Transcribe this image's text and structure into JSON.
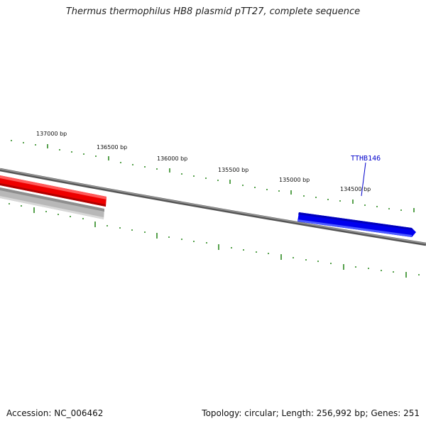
{
  "title": "Thermus thermophilus HB8 plasmid pTT27, complete sequence",
  "accession_text": "Accession: NC_006462",
  "summary_text": "Topology: circular; Length: 256,992 bp; Genes: 251",
  "tick_labels": [
    "137000 bp",
    "136500 bp",
    "136000 bp",
    "135500 bp",
    "135000 bp",
    "134500 bp"
  ],
  "gene_label": "TTHB146",
  "colors": {
    "backbone": "#7a7a7a",
    "tick": "#2e8b22",
    "forward_gene": "#ee0000",
    "reverse_gene": "#0000ee",
    "grey_feature": "#b8b8b8",
    "gene_label": "#0000cc"
  }
}
